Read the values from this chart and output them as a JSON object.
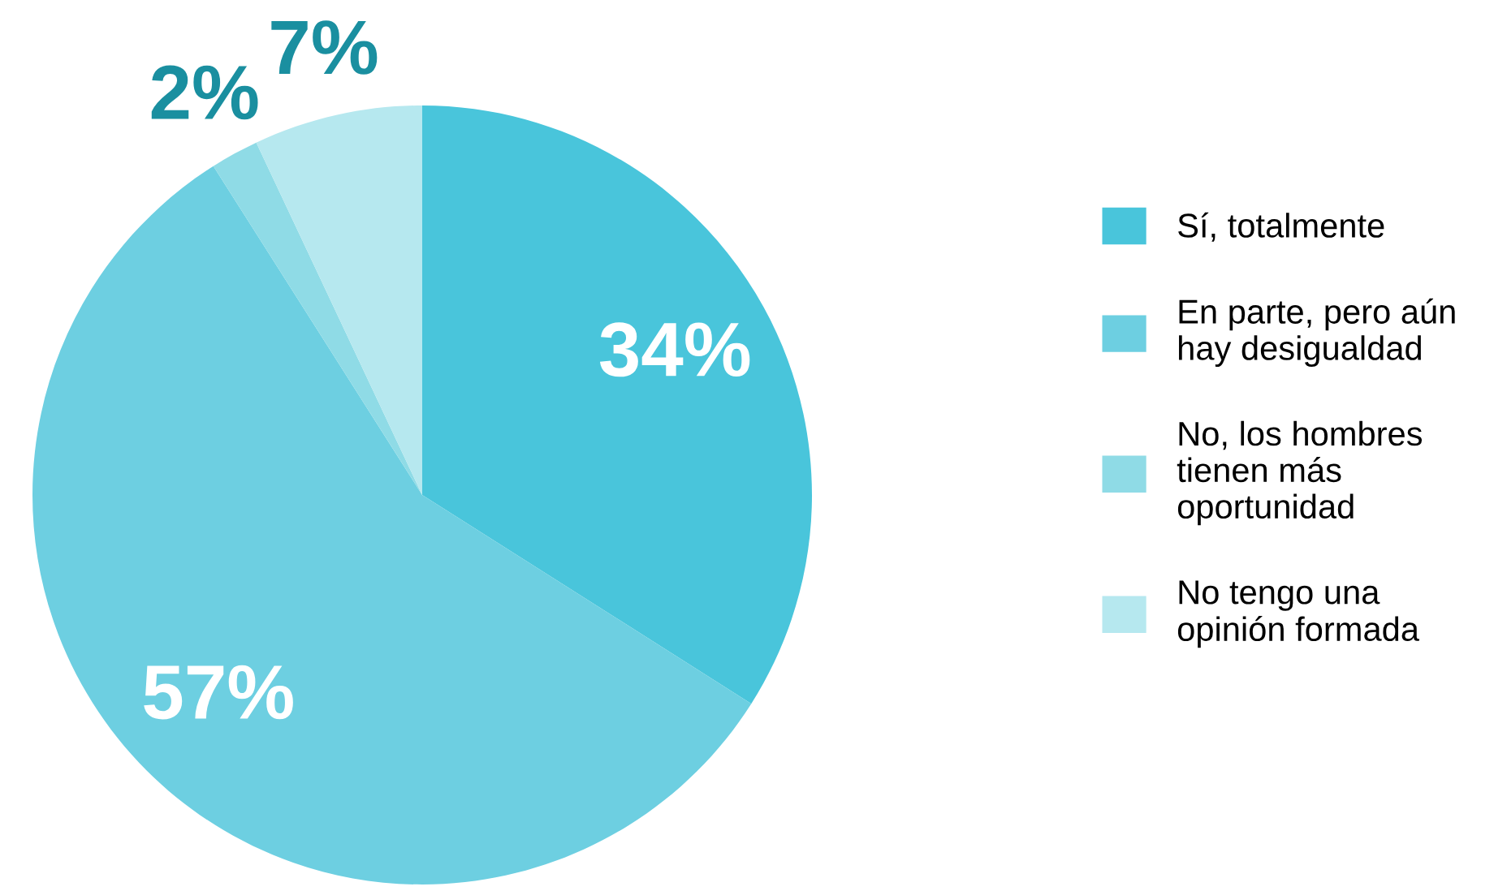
{
  "chart_data": {
    "type": "pie",
    "categories": [
      "Sí, totalmente",
      "En parte, pero aún\nhay desigualdad",
      "No, los hombres\ntienen más\noportunidad",
      "No tengo una\nopinión formada"
    ],
    "values": [
      34,
      57,
      2,
      7
    ],
    "colors": [
      "#49c5db",
      "#6dcfe1",
      "#8fdbe6",
      "#b6e8ef"
    ],
    "value_labels": [
      "34%",
      "57%",
      "2%",
      "7%"
    ],
    "legend": "right"
  }
}
